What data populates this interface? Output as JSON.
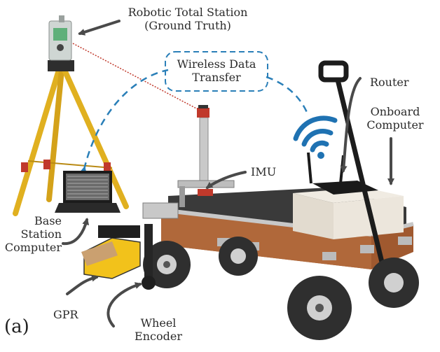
{
  "labels": {
    "total_station_line1": "Robotic Total Station",
    "total_station_line2": "(Ground Truth)",
    "wireless_line1": "Wireless Data",
    "wireless_line2": "Transfer",
    "router": "Router",
    "onboard_line1": "Onboard",
    "onboard_line2": "Computer",
    "imu": "IMU",
    "base_line1": "Base",
    "base_line2": "Station",
    "base_line3": "Computer",
    "gpr": "GPR",
    "wheel_line1": "Wheel",
    "wheel_line2": "Encoder",
    "panel": "(a)"
  },
  "colors": {
    "annotation_arrow": "#4a4a4a",
    "wireless_dash": "#2a7fb8",
    "wifi_symbol": "#1f72b2",
    "laser_line": "#c0392b",
    "tripod_yellow": "#e0b020",
    "cart_wood": "#a0592f",
    "gpr_yellow": "#f2c21b",
    "tire": "#2f2f2f"
  }
}
